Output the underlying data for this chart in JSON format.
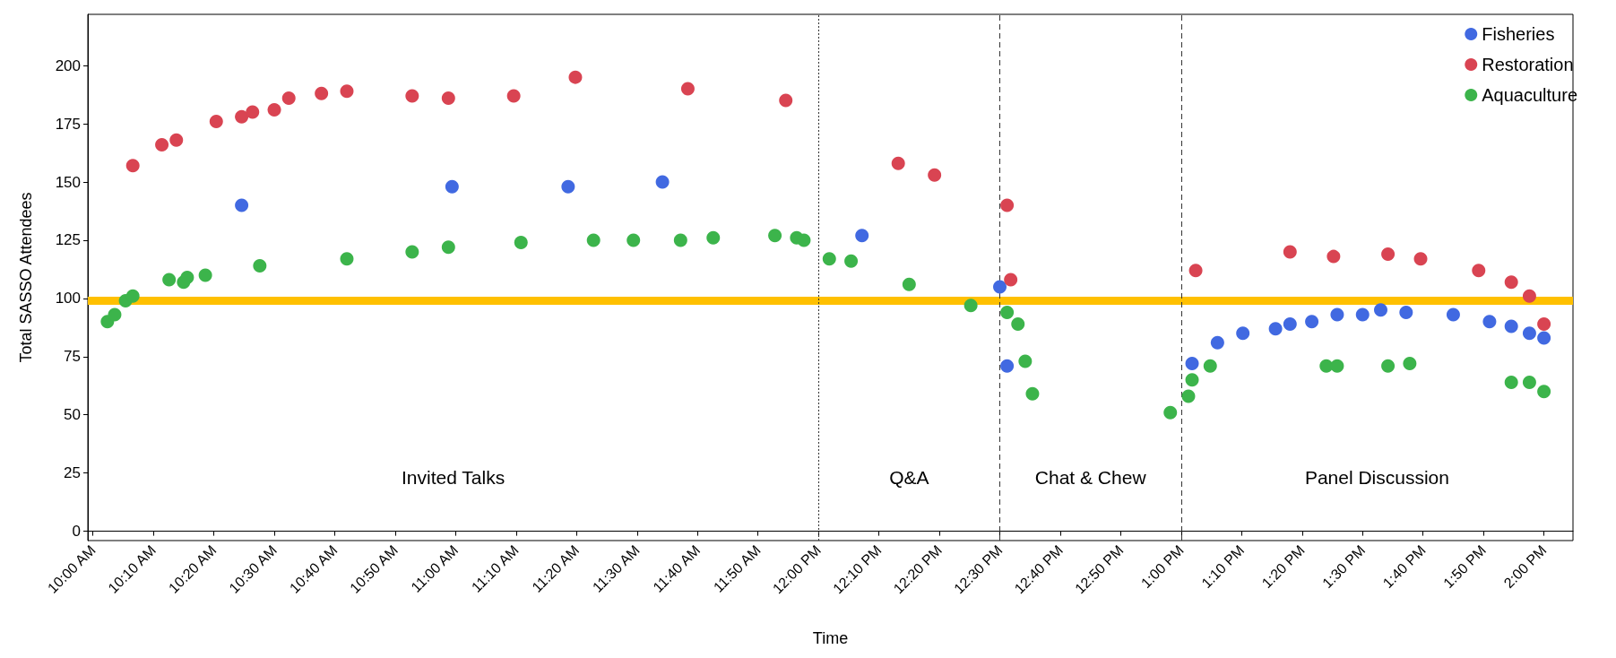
{
  "chart_data": {
    "type": "scatter",
    "xlabel": "Time",
    "ylabel": "Total SASSO Attendees",
    "xlim": [
      9.986,
      14.08
    ],
    "ylim": [
      -4,
      222
    ],
    "xticks": [
      {
        "value": 10,
        "label": "10:00 AM"
      },
      {
        "value": 10.1667,
        "label": "10:10 AM"
      },
      {
        "value": 10.3333,
        "label": "10:20 AM"
      },
      {
        "value": 10.5,
        "label": "10:30 AM"
      },
      {
        "value": 10.6667,
        "label": "10:40 AM"
      },
      {
        "value": 10.8333,
        "label": "10:50 AM"
      },
      {
        "value": 11,
        "label": "11:00 AM"
      },
      {
        "value": 11.1667,
        "label": "11:10 AM"
      },
      {
        "value": 11.3333,
        "label": "11:20 AM"
      },
      {
        "value": 11.5,
        "label": "11:30 AM"
      },
      {
        "value": 11.6667,
        "label": "11:40 AM"
      },
      {
        "value": 11.8333,
        "label": "11:50 AM"
      },
      {
        "value": 12,
        "label": "12:00 PM"
      },
      {
        "value": 12.1667,
        "label": "12:10 PM"
      },
      {
        "value": 12.3333,
        "label": "12:20 PM"
      },
      {
        "value": 12.5,
        "label": "12:30 PM"
      },
      {
        "value": 12.6667,
        "label": "12:40 PM"
      },
      {
        "value": 12.8333,
        "label": "12:50 PM"
      },
      {
        "value": 13,
        "label": "1:00 PM"
      },
      {
        "value": 13.1667,
        "label": "1:10 PM"
      },
      {
        "value": 13.3333,
        "label": "1:20 PM"
      },
      {
        "value": 13.5,
        "label": "1:30 PM"
      },
      {
        "value": 13.6667,
        "label": "1:40 PM"
      },
      {
        "value": 13.8333,
        "label": "1:50 PM"
      },
      {
        "value": 14,
        "label": "2:00 PM"
      }
    ],
    "yticks": [
      0,
      25,
      50,
      75,
      100,
      125,
      150,
      175,
      200
    ],
    "grid": false,
    "legend": "top right",
    "marker": "circle",
    "series": [
      {
        "name": "Fisheries",
        "color": "#4169e1",
        "x": [
          10.41,
          10.99,
          11.31,
          11.57,
          12.12,
          12.5,
          12.52,
          13.03,
          13.1,
          13.17,
          13.26,
          13.3,
          13.36,
          13.43,
          13.5,
          13.55,
          13.62,
          13.75,
          13.85,
          13.91,
          13.96,
          14.0
        ],
        "values": [
          140,
          148,
          148,
          150,
          127,
          105,
          71,
          72,
          81,
          85,
          87,
          89,
          90,
          93,
          93,
          95,
          94,
          93,
          90,
          88,
          85,
          83
        ]
      },
      {
        "name": "Restoration",
        "color": "#d94452",
        "x": [
          10.11,
          10.19,
          10.23,
          10.34,
          10.41,
          10.44,
          10.5,
          10.54,
          10.63,
          10.7,
          10.88,
          10.98,
          11.16,
          11.33,
          11.64,
          11.91,
          12.22,
          12.32,
          12.52,
          12.53,
          13.04,
          13.3,
          13.42,
          13.57,
          13.66,
          13.82,
          13.91,
          13.96,
          14.0
        ],
        "values": [
          157,
          166,
          168,
          176,
          178,
          180,
          181,
          186,
          188,
          189,
          187,
          186,
          187,
          195,
          190,
          185,
          158,
          153,
          140,
          108,
          112,
          120,
          118,
          119,
          117,
          112,
          107,
          101,
          89
        ]
      },
      {
        "name": "Aquaculture",
        "color": "#3cb44b",
        "x": [
          10.04,
          10.06,
          10.09,
          10.11,
          10.21,
          10.25,
          10.26,
          10.31,
          10.46,
          10.7,
          10.88,
          10.98,
          11.18,
          11.38,
          11.49,
          11.62,
          11.71,
          11.88,
          11.94,
          11.96,
          12.03,
          12.09,
          12.25,
          12.42,
          12.52,
          12.55,
          12.57,
          12.59,
          12.97,
          13.02,
          13.03,
          13.08,
          13.4,
          13.43,
          13.57,
          13.63,
          13.91,
          13.96,
          14.0
        ],
        "values": [
          90,
          93,
          99,
          101,
          108,
          107,
          109,
          110,
          114,
          117,
          120,
          122,
          124,
          125,
          125,
          125,
          126,
          127,
          126,
          125,
          117,
          116,
          106,
          97,
          94,
          89,
          73,
          59,
          51,
          58,
          65,
          71,
          71,
          71,
          71,
          72,
          64,
          64,
          60
        ]
      }
    ],
    "ref_lines": [
      {
        "axis": "y",
        "value": 99,
        "color": "#ffc000",
        "line_style": "solid"
      },
      {
        "axis": "x",
        "value": 12,
        "color": "#333333",
        "line_style": "dotted"
      },
      {
        "axis": "x",
        "value": 12.5,
        "color": "#333333",
        "line_style": "dashed"
      },
      {
        "axis": "x",
        "value": 13,
        "color": "#333333",
        "line_style": "dashed"
      }
    ],
    "annotations": [
      "Invited Talks",
      "Q&A",
      "Chat & Chew",
      "Panel Discussion"
    ]
  }
}
